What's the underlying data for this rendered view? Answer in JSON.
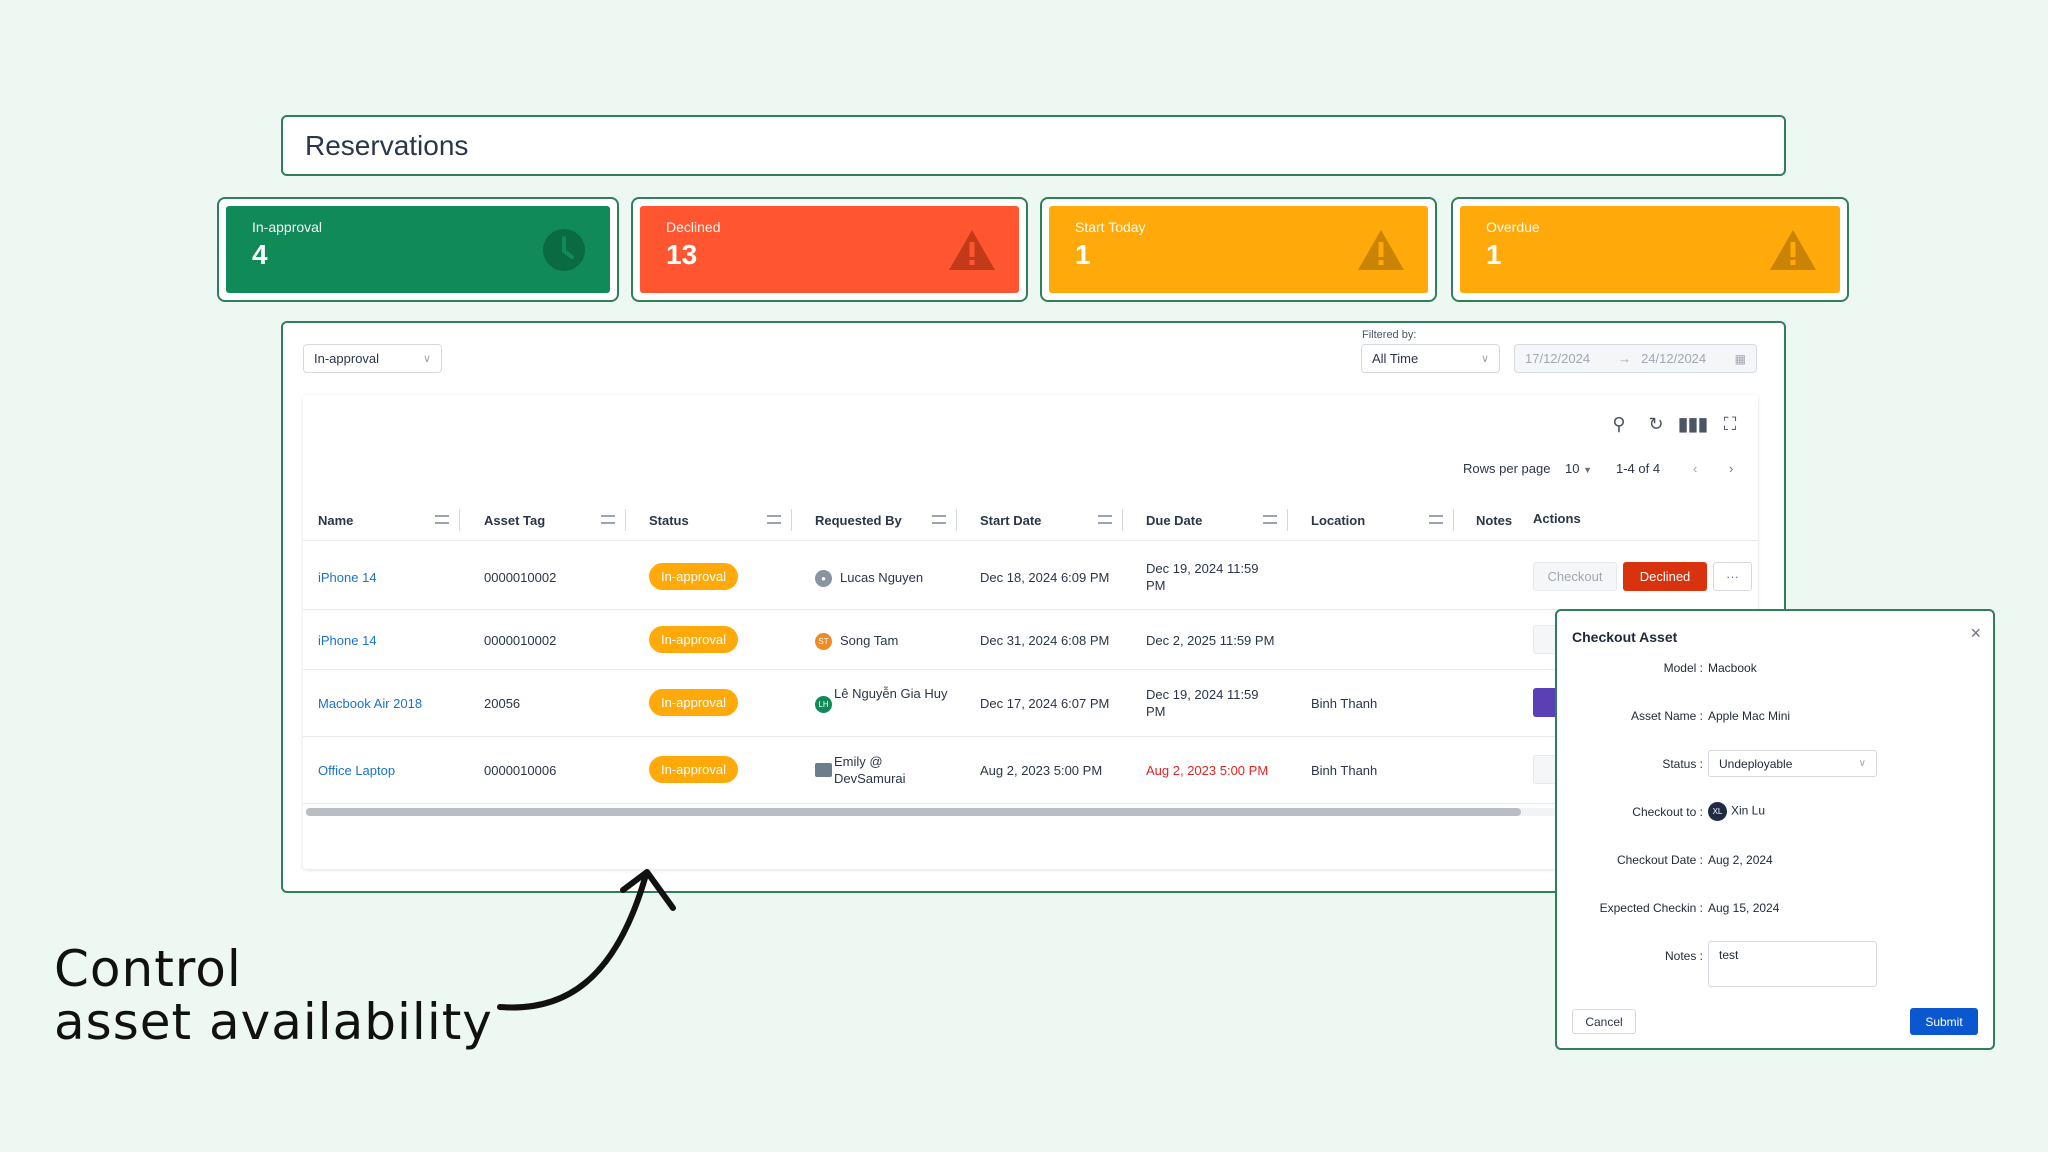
{
  "page": {
    "title": "Reservations"
  },
  "stats": [
    {
      "label": "In-approval",
      "value": "4",
      "icon": "clock-icon",
      "color": "#108a56"
    },
    {
      "label": "Declined",
      "value": "13",
      "icon": "warning-icon",
      "color": "#ff5631"
    },
    {
      "label": "Start Today",
      "value": "1",
      "icon": "warning-icon",
      "color": "#ffa90a"
    },
    {
      "label": "Overdue",
      "value": "1",
      "icon": "warning-icon",
      "color": "#ffa90a"
    }
  ],
  "filters": {
    "status_select": "In-approval",
    "filtered_by_label": "Filtered by:",
    "time_select": "All Time",
    "date_start": "17/12/2024",
    "date_arrow": "→",
    "date_end": "24/12/2024"
  },
  "pagination": {
    "rows_label": "Rows per page",
    "rows_value": "10",
    "range": "1-4 of 4"
  },
  "table": {
    "columns": [
      "Name",
      "Asset Tag",
      "Status",
      "Requested By",
      "Start Date",
      "Due Date",
      "Location",
      "Notes",
      "Actions"
    ],
    "rows": [
      {
        "name": "iPhone 14",
        "tag": "0000010002",
        "status": "In-approval",
        "requester": "Lucas Nguyen",
        "avatar": "",
        "start": "Dec 18, 2024 6:09 PM",
        "due": "Dec 19, 2024 11:59 PM",
        "location": "",
        "overdue": false
      },
      {
        "name": "iPhone 14",
        "tag": "0000010002",
        "status": "In-approval",
        "requester": "Song Tam",
        "avatar": "ST",
        "start": "Dec 31, 2024 6:08 PM",
        "due": "Dec 2, 2025 11:59 PM",
        "location": "",
        "overdue": false
      },
      {
        "name": "Macbook Air 2018",
        "tag": "20056",
        "status": "In-approval",
        "requester": "Lê Nguyễn Gia Huy",
        "avatar": "LH",
        "start": "Dec 17, 2024 6:07 PM",
        "due": "Dec 19, 2024 11:59 PM",
        "location": "Binh Thanh",
        "overdue": false
      },
      {
        "name": "Office Laptop",
        "tag": "0000010006",
        "status": "In-approval",
        "requester": "Emily @ DevSamurai",
        "avatar": "",
        "start": "Aug 2, 2023 5:00 PM",
        "due": "Aug 2, 2023 5:00 PM",
        "location": "Binh Thanh",
        "overdue": true
      }
    ],
    "actions": {
      "checkout": "Checkout",
      "declined": "Declined",
      "more": "···"
    }
  },
  "modal": {
    "title": "Checkout Asset",
    "fields": {
      "model_label": "Model :",
      "model_value": "Macbook",
      "asset_label": "Asset Name :",
      "asset_value": "Apple Mac Mini",
      "status_label": "Status :",
      "status_value": "Undeployable",
      "checkout_to_label": "Checkout to :",
      "checkout_to_avatar": "XL",
      "checkout_to_value": "Xin Lu",
      "checkout_date_label": "Checkout Date :",
      "checkout_date_value": "Aug 2, 2024",
      "expected_label": "Expected Checkin :",
      "expected_value": "Aug 15, 2024",
      "notes_label": "Notes :",
      "notes_value": "test"
    },
    "cancel": "Cancel",
    "submit": "Submit"
  },
  "caption": {
    "line1": "Control",
    "line2": "asset availability"
  }
}
